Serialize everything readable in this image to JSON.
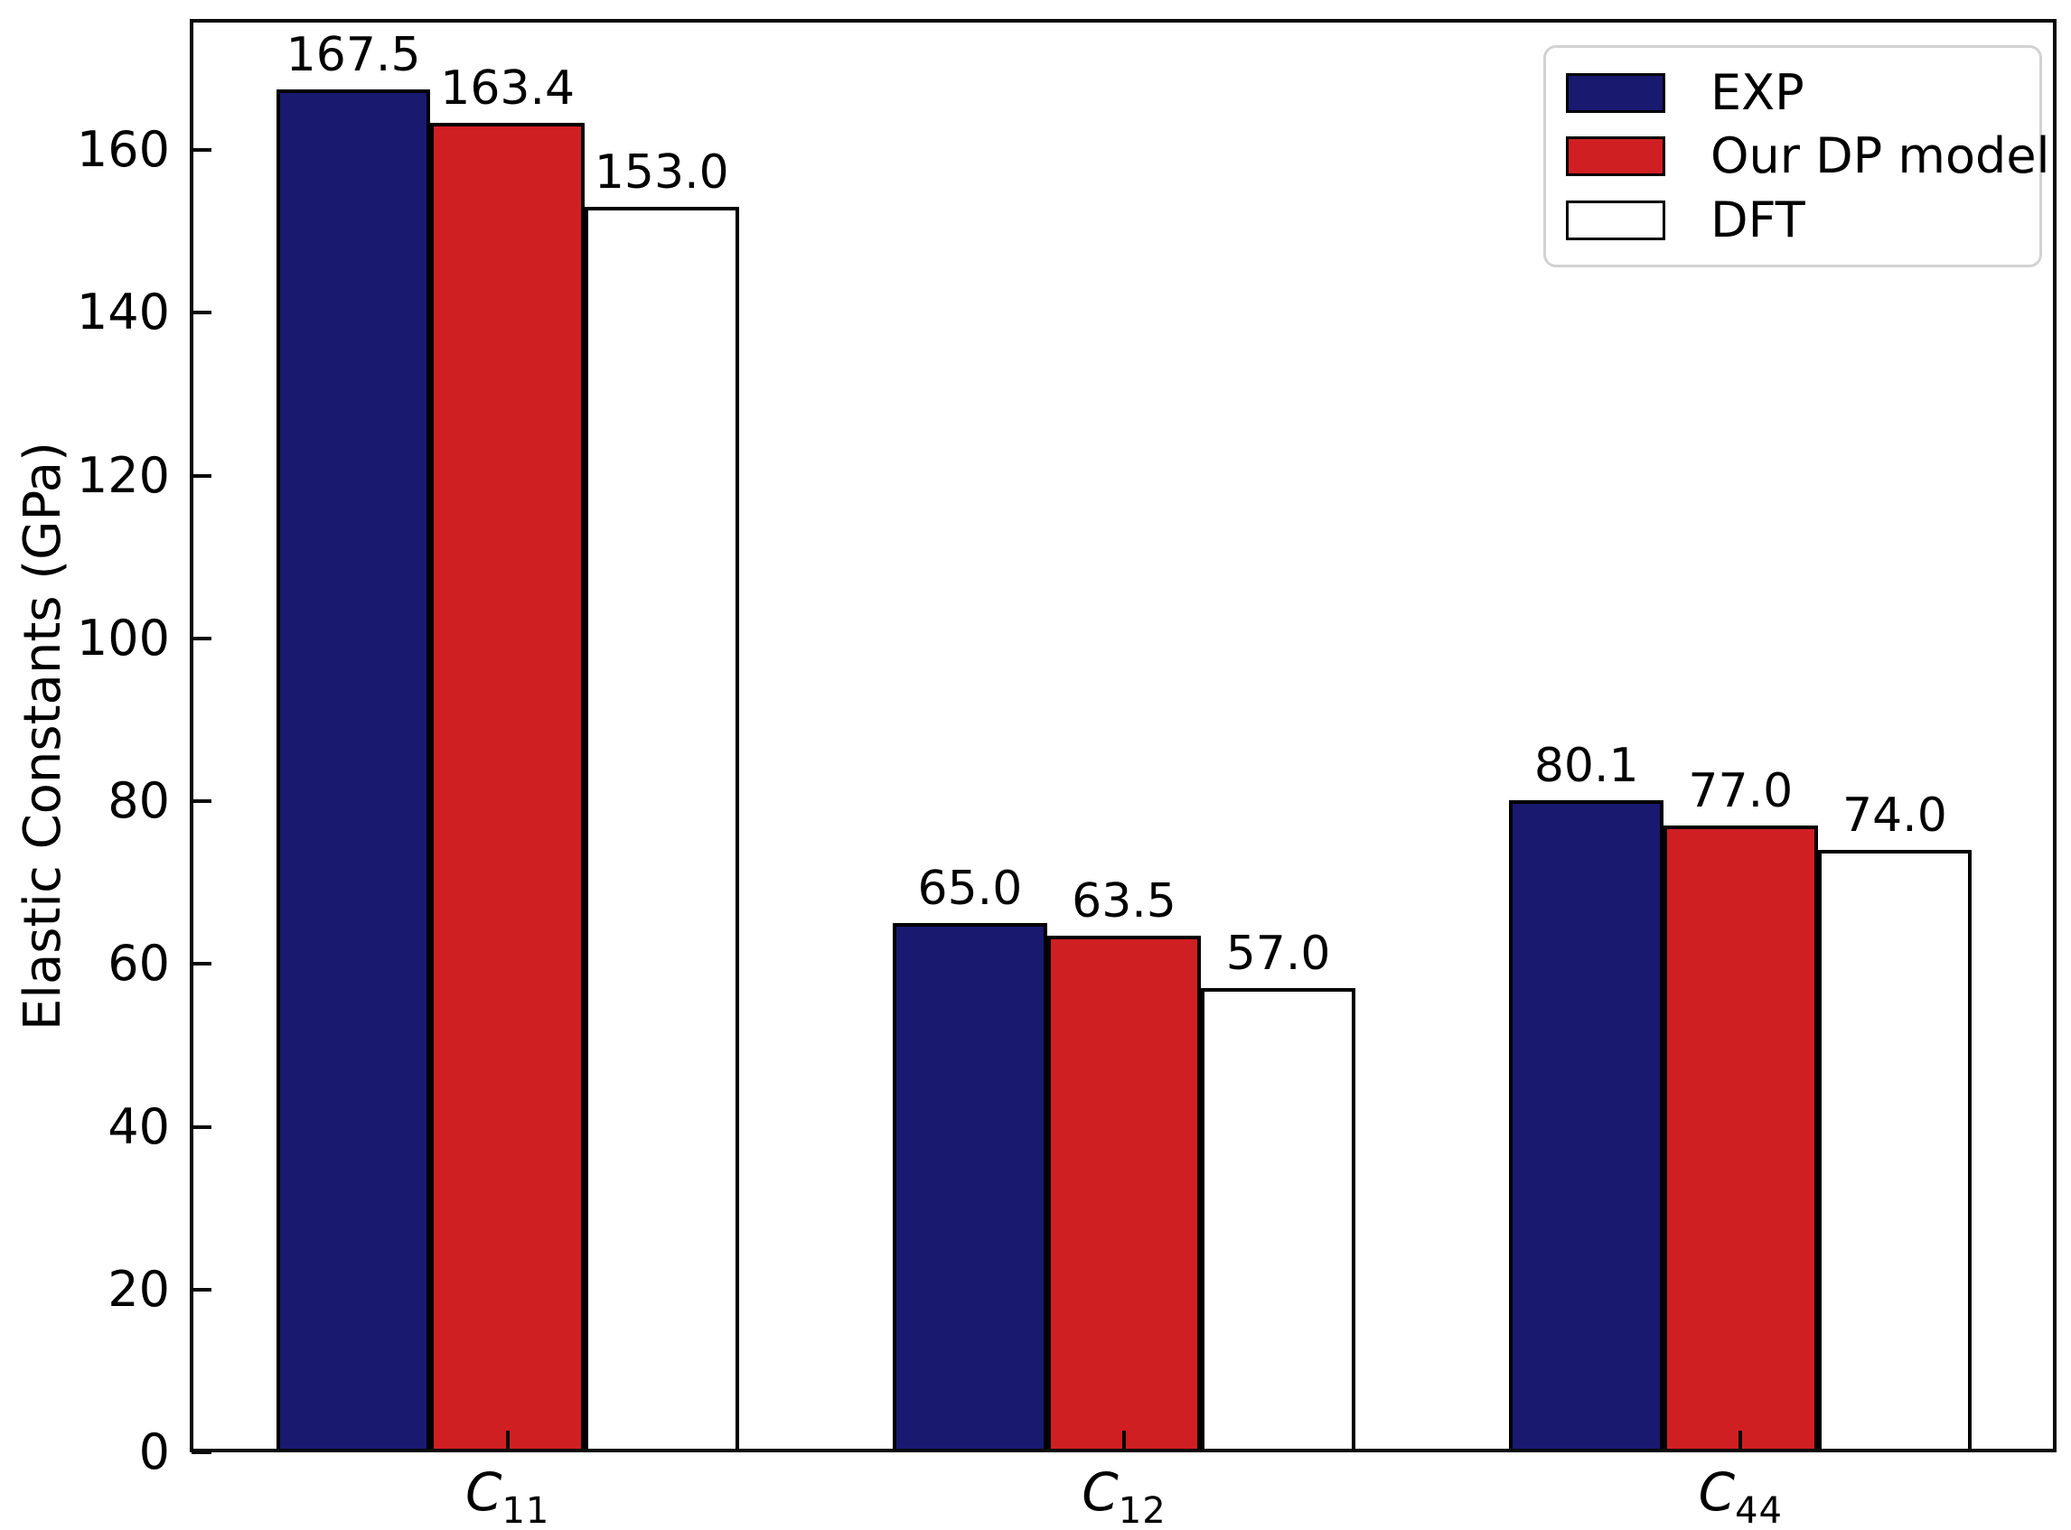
{
  "chart_data": {
    "type": "bar",
    "title": "",
    "xlabel": "",
    "ylabel": "Elastic Constants (GPa)",
    "categories": [
      "C11",
      "C12",
      "C44"
    ],
    "categories_display": [
      {
        "base": "C",
        "sub": "11"
      },
      {
        "base": "C",
        "sub": "12"
      },
      {
        "base": "C",
        "sub": "44"
      }
    ],
    "series": [
      {
        "name": "EXP",
        "color": "#191970",
        "edge_color": "#000000",
        "values": [
          167.5,
          65.0,
          80.1
        ],
        "labels": [
          "167.5",
          "65.0",
          "80.1"
        ]
      },
      {
        "name": "Our DP model",
        "color": "#d01f23",
        "edge_color": "#000000",
        "values": [
          163.4,
          63.5,
          77.0
        ],
        "labels": [
          "163.4",
          "63.5",
          "77.0"
        ]
      },
      {
        "name": "DFT",
        "color": "#ffffff",
        "edge_color": "#000000",
        "values": [
          153.0,
          57.0,
          74.0
        ],
        "labels": [
          "153.0",
          "57.0",
          "74.0"
        ]
      }
    ],
    "yticks": [
      "0",
      "20",
      "40",
      "60",
      "80",
      "100",
      "120",
      "140",
      "160"
    ],
    "ytick_values": [
      0,
      20,
      40,
      60,
      80,
      100,
      120,
      140,
      160
    ],
    "ylim": [
      0,
      175.9
    ],
    "xlim": [
      -0.5125,
      2.5125
    ],
    "bar_width": 0.25,
    "grid": false,
    "legend_position": "upper right",
    "tick_direction": "in"
  }
}
